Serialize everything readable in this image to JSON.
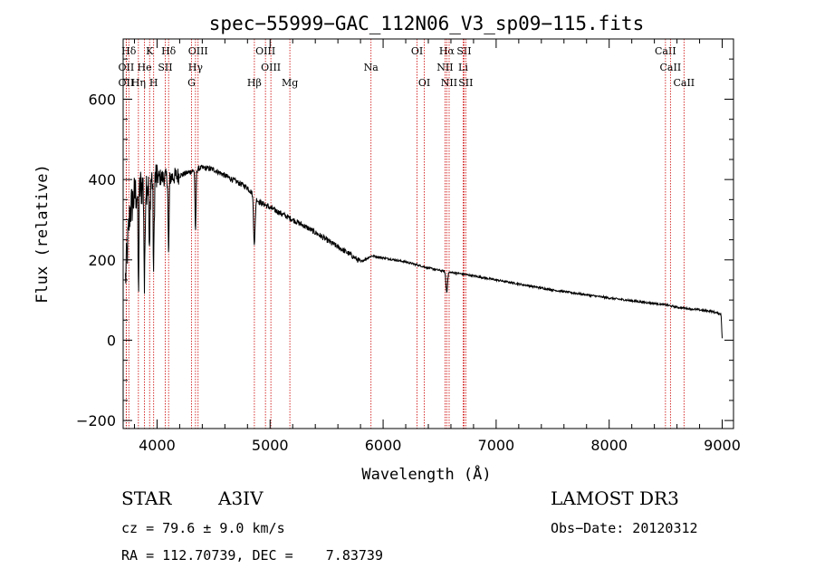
{
  "chart_data": {
    "type": "line",
    "title": "spec−55999−GAC_112N06_V3_sp09−115.fits",
    "xlabel": "Wavelength (Å)",
    "ylabel": "Flux (relative)",
    "xlim": [
      3700,
      9100
    ],
    "ylim": [
      -220,
      750
    ],
    "xticks": [
      4000,
      5000,
      6000,
      7000,
      8000,
      9000
    ],
    "yticks": [
      -200,
      0,
      200,
      400,
      600
    ],
    "xtick_labels": [
      "4000",
      "5000",
      "6000",
      "7000",
      "8000",
      "9000"
    ],
    "ytick_labels": [
      "−200",
      "0",
      "200",
      "400",
      "600"
    ],
    "spectrum_anchor_points": {
      "wavelength": [
        3720,
        3760,
        3800,
        3850,
        3900,
        3950,
        4000,
        4100,
        4200,
        4300,
        4400,
        4500,
        4600,
        4700,
        4800,
        4860,
        4900,
        5000,
        5100,
        5200,
        5300,
        5400,
        5500,
        5600,
        5700,
        5800,
        5900,
        6000,
        6200,
        6400,
        6563,
        6700,
        7000,
        7500,
        8000,
        8500,
        8600,
        8900,
        8990,
        9000
      ],
      "flux": [
        150,
        320,
        360,
        380,
        390,
        400,
        405,
        405,
        410,
        420,
        430,
        425,
        410,
        395,
        380,
        360,
        345,
        330,
        315,
        300,
        285,
        268,
        250,
        232,
        215,
        195,
        210,
        205,
        195,
        180,
        170,
        165,
        150,
        125,
        105,
        88,
        82,
        72,
        65,
        5
      ]
    },
    "absorption_dips": [
      {
        "wavelength": 3835,
        "depth": 250
      },
      {
        "wavelength": 3889,
        "depth": 270
      },
      {
        "wavelength": 3933,
        "depth": 200
      },
      {
        "wavelength": 3970,
        "depth": 240
      },
      {
        "wavelength": 4102,
        "depth": 200
      },
      {
        "wavelength": 4340,
        "depth": 160
      },
      {
        "wavelength": 4861,
        "depth": 120
      },
      {
        "wavelength": 6563,
        "depth": 50
      }
    ],
    "spectral_lines": [
      {
        "label": "Hδ",
        "wavelength": 3750,
        "row": 0
      },
      {
        "label": "K",
        "wavelength": 3934,
        "row": 0
      },
      {
        "label": "Hδ",
        "wavelength": 4102,
        "row": 0
      },
      {
        "label": "OIII",
        "wavelength": 4363,
        "row": 0
      },
      {
        "label": "OIII",
        "wavelength": 4959,
        "row": 0
      },
      {
        "label": "OI",
        "wavelength": 6300,
        "row": 0
      },
      {
        "label": "Hα",
        "wavelength": 6563,
        "row": 0
      },
      {
        "label": "SII",
        "wavelength": 6716,
        "row": 0
      },
      {
        "label": "CaII",
        "wavelength": 8498,
        "row": 0
      },
      {
        "label": "OII",
        "wavelength": 3727,
        "row": 1
      },
      {
        "label": "He",
        "wavelength": 3889,
        "row": 1
      },
      {
        "label": "SII",
        "wavelength": 4072,
        "row": 1
      },
      {
        "label": "Hγ",
        "wavelength": 4340,
        "row": 1
      },
      {
        "label": "OIII",
        "wavelength": 5007,
        "row": 1
      },
      {
        "label": "Na",
        "wavelength": 5893,
        "row": 1
      },
      {
        "label": "NII",
        "wavelength": 6548,
        "row": 1
      },
      {
        "label": "Li",
        "wavelength": 6708,
        "row": 1
      },
      {
        "label": "CaII",
        "wavelength": 8542,
        "row": 1
      },
      {
        "label": "OII",
        "wavelength": 3727,
        "row": 2
      },
      {
        "label": "Hη",
        "wavelength": 3835,
        "row": 2
      },
      {
        "label": "H",
        "wavelength": 3970,
        "row": 2
      },
      {
        "label": "G",
        "wavelength": 4305,
        "row": 2
      },
      {
        "label": "Hβ",
        "wavelength": 4861,
        "row": 2
      },
      {
        "label": "Mg",
        "wavelength": 5175,
        "row": 2
      },
      {
        "label": "OI",
        "wavelength": 6364,
        "row": 2
      },
      {
        "label": "NII",
        "wavelength": 6584,
        "row": 2
      },
      {
        "label": "SII",
        "wavelength": 6731,
        "row": 2
      },
      {
        "label": "CaII",
        "wavelength": 8662,
        "row": 2
      }
    ],
    "line_color": "#000000",
    "marker_color": "#cc0000"
  },
  "info": {
    "object_class": "STAR",
    "subclass": "A3IV",
    "survey": "LAMOST DR3",
    "cz": "cz = 79.6 ± 9.0 km/s",
    "obs_date": "Obs−Date: 20120312",
    "coords": "RA = 112.70739, DEC =    7.83739"
  }
}
